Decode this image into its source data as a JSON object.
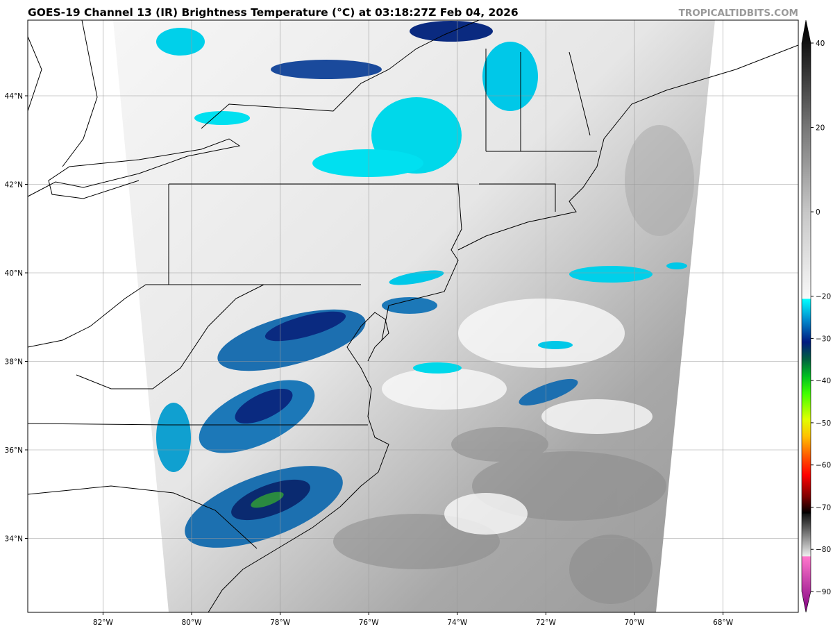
{
  "title": "GOES-19 Channel 13 (IR) Brightness Temperature (°C) at 03:18:27Z Feb 04, 2026",
  "brand": "TROPICALTIDBITS.COM",
  "map": {
    "longitude_labels": [
      "82°W",
      "80°W",
      "78°W",
      "76°W",
      "74°W",
      "72°W",
      "70°W",
      "68°W"
    ],
    "longitude_values": [
      -82,
      -80,
      -78,
      -76,
      -74,
      -72,
      -70,
      -68
    ],
    "latitude_labels": [
      "44°N",
      "42°N",
      "40°N",
      "38°N",
      "36°N",
      "34°N"
    ],
    "latitude_values": [
      44,
      42,
      40,
      38,
      36,
      34
    ],
    "gridlines": true
  },
  "colorbar": {
    "tick_labels": [
      "40",
      "20",
      "0",
      "−20",
      "−30",
      "−40",
      "−50",
      "−60",
      "−70",
      "−80",
      "−90"
    ],
    "tick_values": [
      40,
      20,
      0,
      -20,
      -30,
      -40,
      -50,
      -60,
      -70,
      -80,
      -90
    ],
    "range": [
      -93,
      45
    ],
    "stops": [
      {
        "v": 45,
        "c": "#000000"
      },
      {
        "v": 40,
        "c": "#111111"
      },
      {
        "v": 20,
        "c": "#777777"
      },
      {
        "v": 0,
        "c": "#c8c8c8"
      },
      {
        "v": -19.9,
        "c": "#f8f8f8"
      },
      {
        "v": -20,
        "c": "#00ffff"
      },
      {
        "v": -25,
        "c": "#0088cc"
      },
      {
        "v": -30,
        "c": "#001a80"
      },
      {
        "v": -34,
        "c": "#006040"
      },
      {
        "v": -38,
        "c": "#00c020"
      },
      {
        "v": -42,
        "c": "#40ff00"
      },
      {
        "v": -48,
        "c": "#e0ff00"
      },
      {
        "v": -52,
        "c": "#ffc000"
      },
      {
        "v": -57,
        "c": "#ff5000"
      },
      {
        "v": -61,
        "c": "#ff0000"
      },
      {
        "v": -66,
        "c": "#800000"
      },
      {
        "v": -69.9,
        "c": "#000000"
      },
      {
        "v": -70,
        "c": "#111111"
      },
      {
        "v": -79.9,
        "c": "#eeeeee"
      },
      {
        "v": -80,
        "c": "#ff77cc"
      },
      {
        "v": -93,
        "c": "#800080"
      }
    ]
  }
}
